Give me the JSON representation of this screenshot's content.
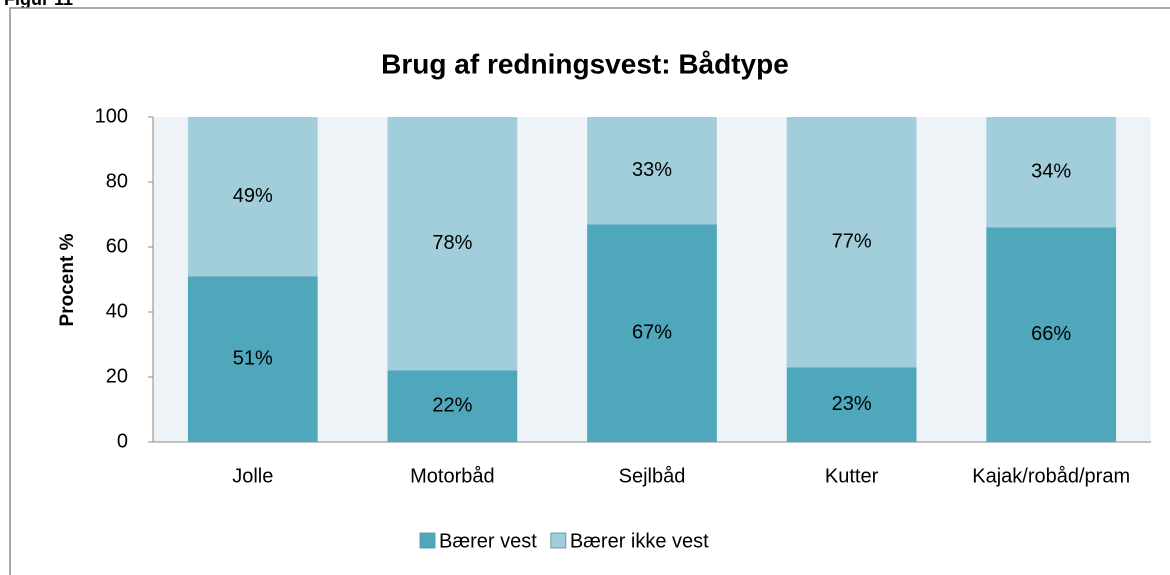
{
  "figure_label": "Figur 11",
  "chart_data": {
    "type": "stacked_bar",
    "title": "Brug af redningsvest: Bådtype",
    "y_label": "Procent %",
    "categories": [
      "Jolle",
      "Motorbåd",
      "Sejlbåd",
      "Kutter",
      "Kajak/robåd/pram"
    ],
    "series": [
      {
        "name": "Bærer vest",
        "color": "#4fa7bb",
        "values": [
          51,
          22,
          67,
          23,
          66
        ],
        "value_labels": [
          "51%",
          "22%",
          "67%",
          "23%",
          "66%"
        ]
      },
      {
        "name": "Bærer ikke vest",
        "color": "#a2cedc",
        "values": [
          49,
          78,
          33,
          77,
          34
        ],
        "value_labels": [
          "49%",
          "78%",
          "33%",
          "77%",
          "34%"
        ]
      }
    ],
    "ylim": [
      0,
      100
    ],
    "yticks": [
      0,
      20,
      40,
      60,
      80,
      100
    ],
    "legend": "bottom"
  }
}
